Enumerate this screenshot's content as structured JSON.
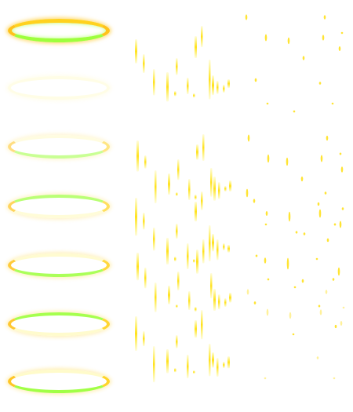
{
  "sprite_sheet": {
    "background": "#ffffff",
    "colors": {
      "gold": "#ffd21e",
      "amber": "#ffc21a",
      "lime": "#9dff3d",
      "pale_yellow": "#fffbc8",
      "bright_yellow": "#ffee22",
      "sun_yellow": "#ffe11e"
    },
    "ring_frames": [
      {
        "state": "bright",
        "opacity": 1.0
      },
      {
        "state": "faint",
        "opacity": 0.45
      },
      {
        "state": "soft",
        "opacity": 0.55
      },
      {
        "state": "soft",
        "opacity": 0.7
      },
      {
        "state": "medium",
        "opacity": 0.85
      },
      {
        "state": "medium",
        "opacity": 0.9
      },
      {
        "state": "bright",
        "opacity": 0.95
      }
    ],
    "streak_frames": 5,
    "sparkle_frames": 5
  }
}
